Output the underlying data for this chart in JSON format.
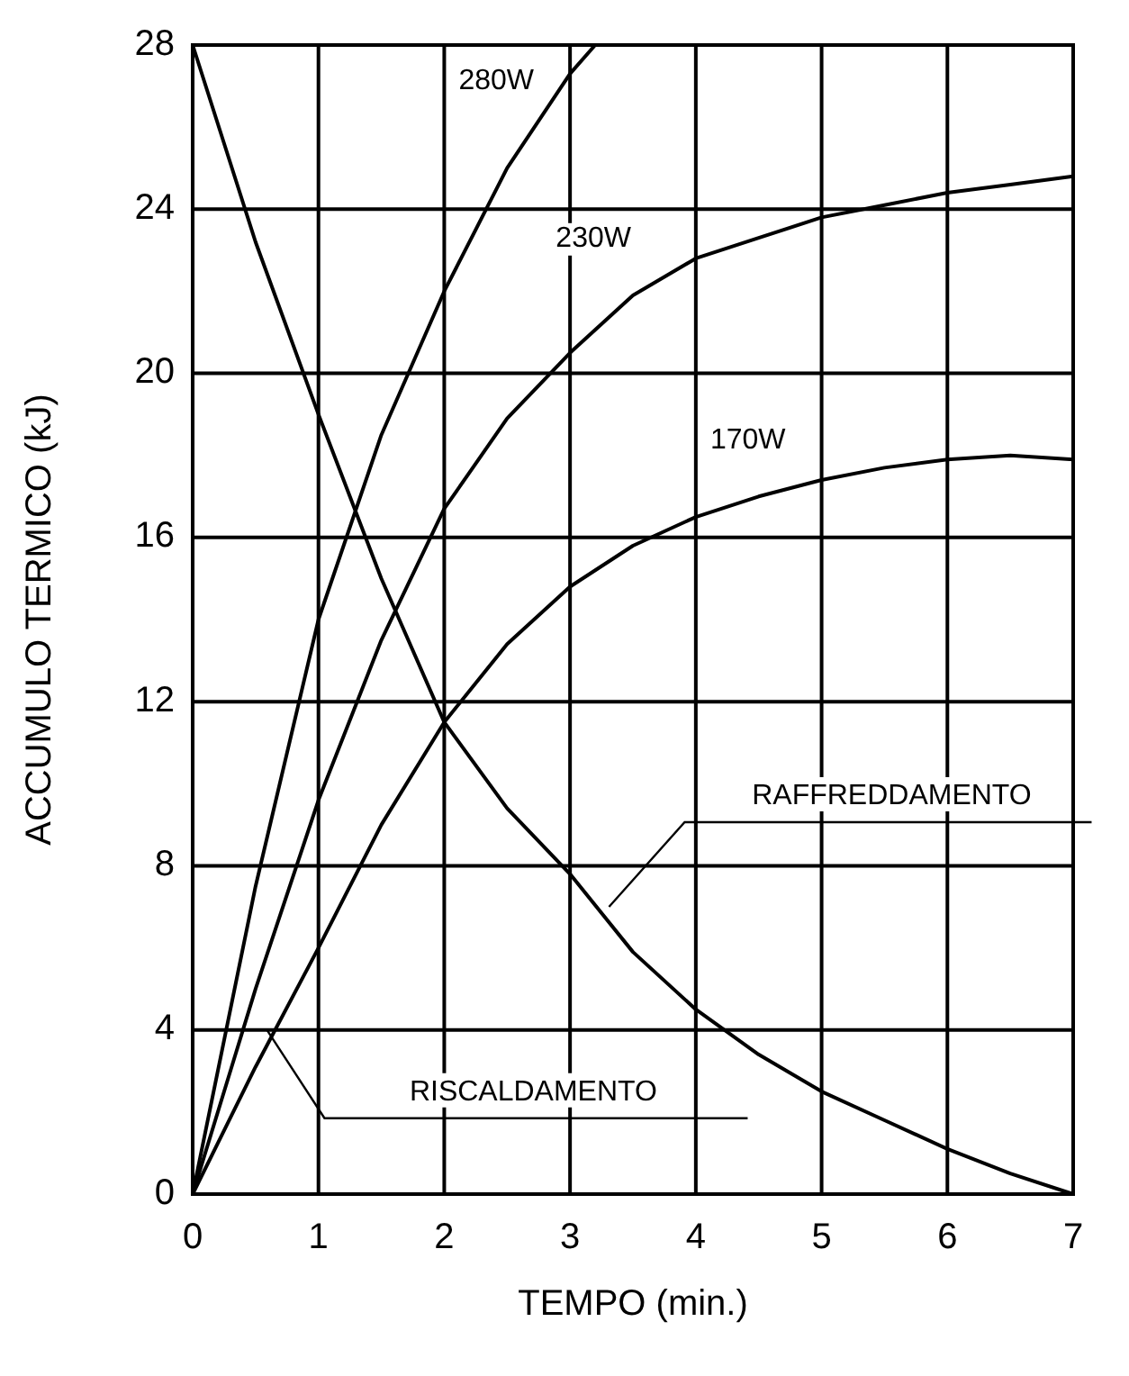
{
  "chart_data": {
    "type": "line",
    "xlabel": "TEMPO (min.)",
    "ylabel": "ACCUMULO TERMICO (kJ)",
    "xlim": [
      0,
      7
    ],
    "ylim": [
      0,
      28
    ],
    "xticks": [
      0,
      1,
      2,
      3,
      4,
      5,
      6,
      7
    ],
    "yticks": [
      0,
      4,
      8,
      12,
      16,
      20,
      24,
      28
    ],
    "grid": true,
    "marker": "none",
    "line_style": "solid",
    "series": [
      {
        "name": "280W",
        "color": "#000000",
        "x": [
          0,
          0.5,
          1,
          1.5,
          2,
          2.5,
          3,
          3.2
        ],
        "values": [
          0,
          7.5,
          14,
          18.5,
          22,
          25,
          27.3,
          28
        ]
      },
      {
        "name": "230W",
        "color": "#000000",
        "x": [
          0,
          0.5,
          1,
          1.5,
          2,
          2.5,
          3,
          3.5,
          4,
          4.5,
          5,
          5.5,
          6,
          6.5,
          7
        ],
        "values": [
          0,
          5,
          9.6,
          13.5,
          16.7,
          18.9,
          20.5,
          21.9,
          22.8,
          23.3,
          23.8,
          24.1,
          24.4,
          24.6,
          24.8
        ]
      },
      {
        "name": "170W",
        "color": "#000000",
        "x": [
          0,
          0.5,
          1,
          1.5,
          2,
          2.5,
          3,
          3.5,
          4,
          4.5,
          5,
          5.5,
          6,
          6.5,
          7
        ],
        "values": [
          0,
          3.1,
          6,
          9,
          11.5,
          13.4,
          14.8,
          15.8,
          16.5,
          17,
          17.4,
          17.7,
          17.9,
          18,
          17.9
        ]
      },
      {
        "color": "#000000",
        "x": [
          0,
          0.5,
          1,
          1.5,
          2,
          2.5,
          3,
          3.5,
          4,
          4.5,
          5,
          5.5,
          6,
          6.5,
          7
        ],
        "values": [
          28,
          23.2,
          19,
          15,
          11.5,
          9.4,
          7.8,
          5.9,
          4.5,
          3.4,
          2.5,
          1.8,
          1.1,
          0.5,
          0
        ]
      }
    ],
    "annotations": [
      {
        "text": "RAFFREDDAMENTO",
        "x": 3.31,
        "y": 7.0
      },
      {
        "text": "RISCALDAMENTO",
        "x": 0.59,
        "y": 4.0
      }
    ]
  }
}
